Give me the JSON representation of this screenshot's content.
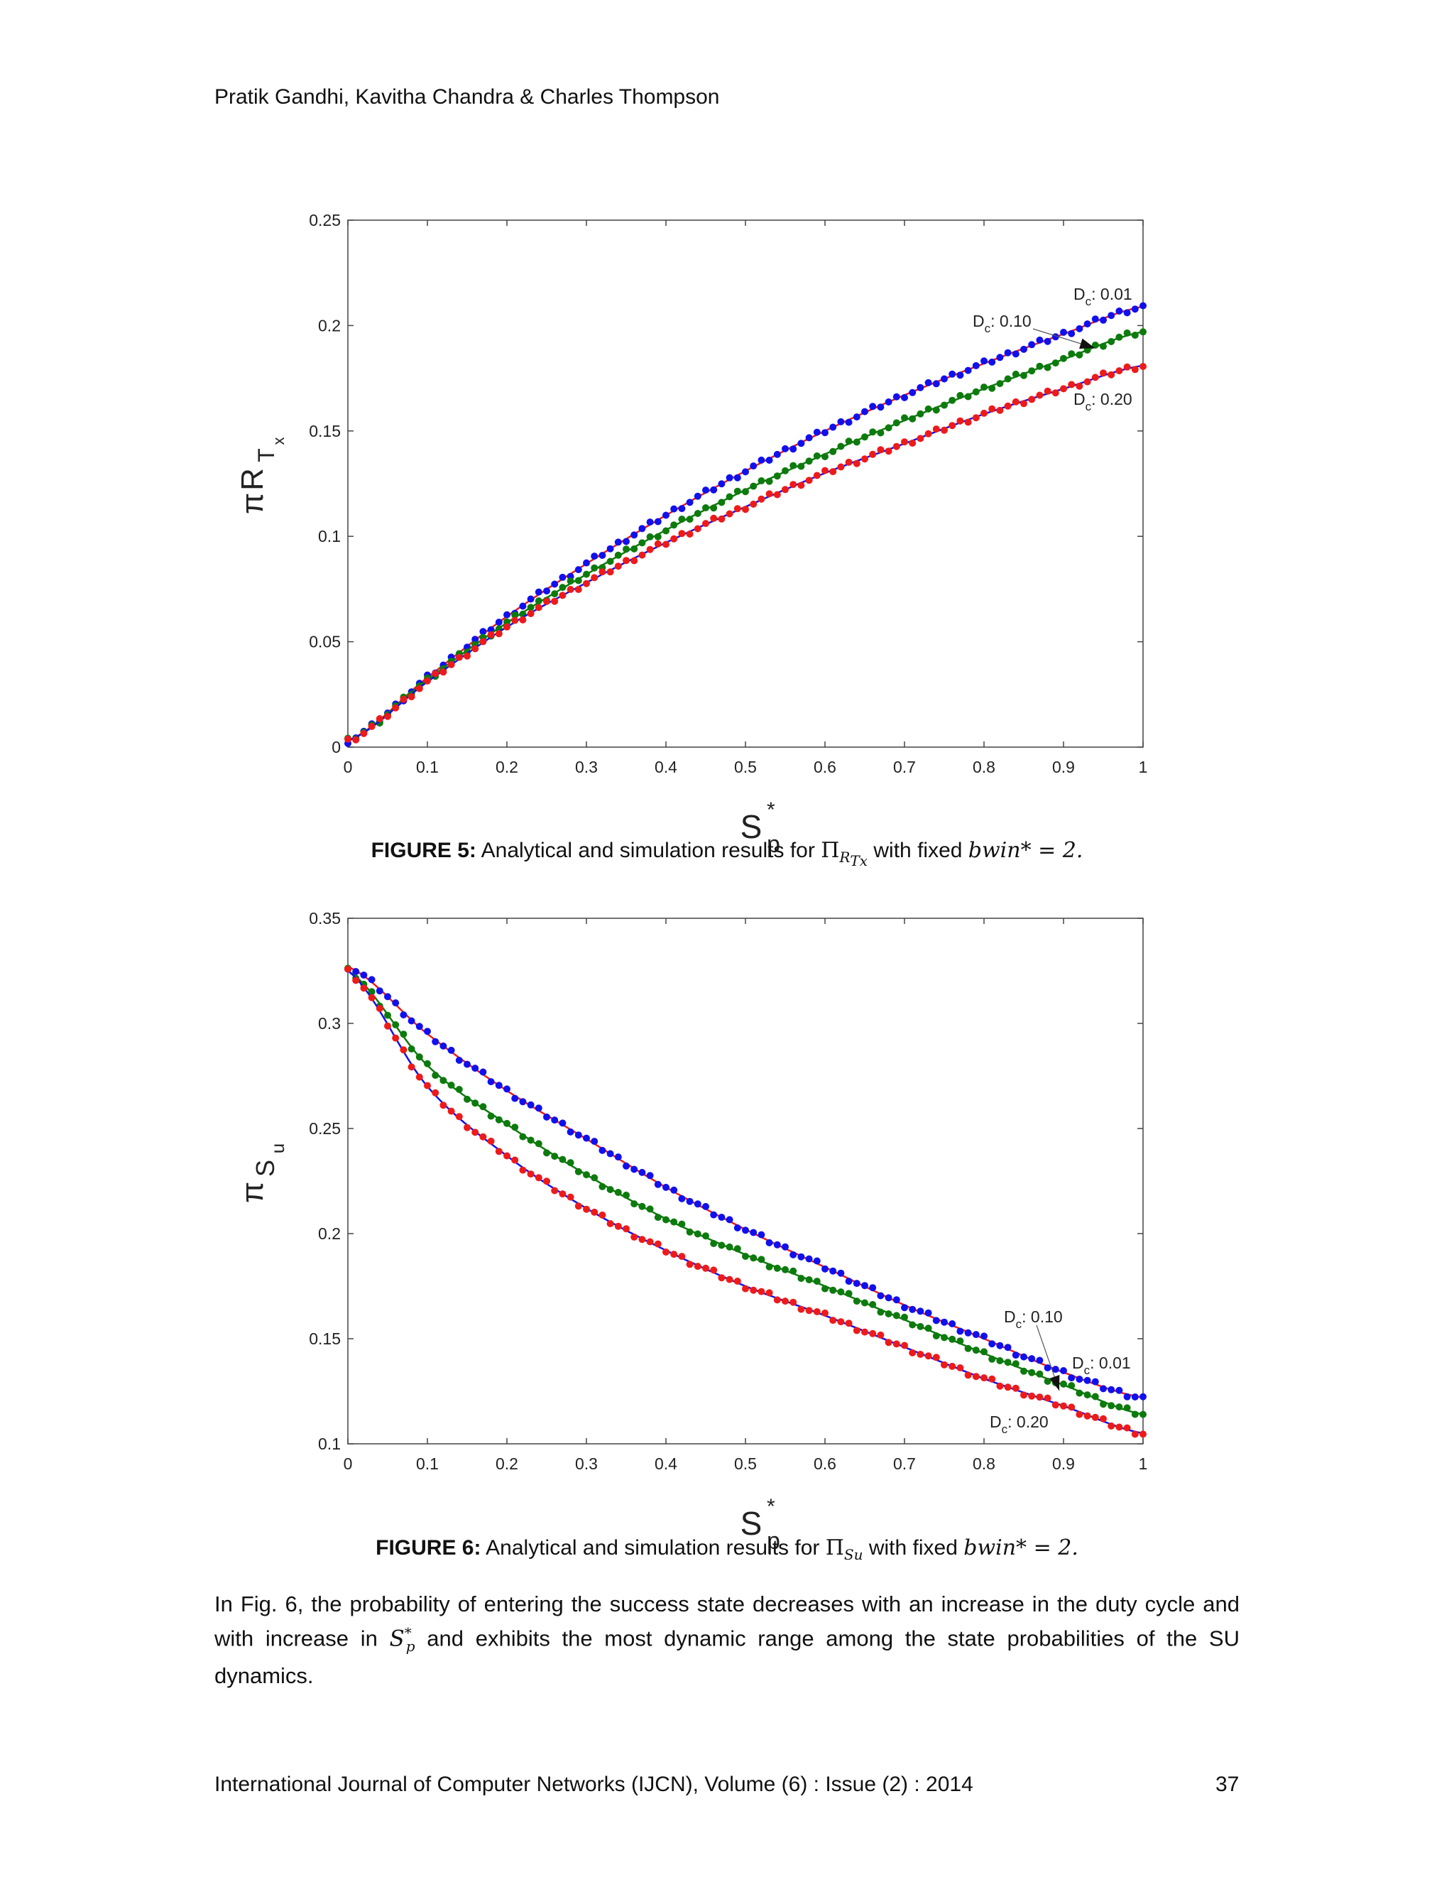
{
  "header": {
    "authors": "Pratik Gandhi, Kavitha Chandra & Charles Thompson"
  },
  "footer": {
    "journal": "International Journal of Computer Networks (IJCN), Volume (6) : Issue (2) : 2014",
    "page": "37"
  },
  "figure5": {
    "label": "FIGURE 5:",
    "text_a": "Analytical and simulation results for ",
    "symbol": "Π",
    "sub": "R",
    "subsub": "Tx",
    "text_b": " with fixed ",
    "bwin": "bwin* = 2."
  },
  "figure6": {
    "label": "FIGURE 6:",
    "text_a": "Analytical and simulation results for ",
    "symbol": "Π",
    "sub": "Su",
    "text_b": " with fixed ",
    "bwin": "bwin* = 2."
  },
  "body": {
    "paragraph_a": "In Fig. 6, the probability of entering the success state decreases with an increase in the duty cycle and with increase in ",
    "sp": "S",
    "sp_sup": "*",
    "sp_sub": "p",
    "paragraph_b": " and exhibits the most dynamic range among the state probabilities of the SU dynamics."
  },
  "colors": {
    "blue": "#1010ee",
    "green": "#0d7a0d",
    "red": "#ee1a1a"
  },
  "chart_data": [
    {
      "type": "line",
      "title": "",
      "xlabel": "S*p",
      "ylabel": "πRTx",
      "xlim": [
        0,
        1
      ],
      "ylim": [
        0,
        0.25
      ],
      "xticks": [
        "0",
        "0.1",
        "0.2",
        "0.3",
        "0.4",
        "0.5",
        "0.6",
        "0.7",
        "0.8",
        "0.9",
        "1"
      ],
      "yticks": [
        "0",
        "0.05",
        "0.1",
        "0.15",
        "0.2",
        "0.25"
      ],
      "grid": false,
      "x": [
        0,
        0.1,
        0.2,
        0.3,
        0.4,
        0.5,
        0.6,
        0.7,
        0.8,
        0.9,
        1.0
      ],
      "series": [
        {
          "name": "Dc: 0.01",
          "color": "blue",
          "values": [
            0.003,
            0.033,
            0.062,
            0.087,
            0.11,
            0.131,
            0.15,
            0.167,
            0.182,
            0.196,
            0.209
          ]
        },
        {
          "name": "Dc: 0.10",
          "color": "green",
          "values": [
            0.003,
            0.032,
            0.059,
            0.082,
            0.103,
            0.122,
            0.139,
            0.155,
            0.17,
            0.184,
            0.197
          ]
        },
        {
          "name": "Dc: 0.20",
          "color": "red",
          "values": [
            0.003,
            0.031,
            0.057,
            0.078,
            0.097,
            0.114,
            0.13,
            0.144,
            0.158,
            0.17,
            0.181
          ]
        }
      ],
      "annotations": [
        {
          "text": "Dc: 0.01",
          "sub": "c",
          "value": ": 0.01"
        },
        {
          "text": "Dc: 0.10",
          "sub": "c",
          "value": ": 0.10"
        },
        {
          "text": "Dc: 0.20",
          "sub": "c",
          "value": ": 0.20"
        }
      ]
    },
    {
      "type": "line",
      "title": "",
      "xlabel": "S*p",
      "ylabel": "πSu",
      "xlim": [
        0,
        1
      ],
      "ylim": [
        0.1,
        0.35
      ],
      "xticks": [
        "0",
        "0.1",
        "0.2",
        "0.3",
        "0.4",
        "0.5",
        "0.6",
        "0.7",
        "0.8",
        "0.9",
        "1"
      ],
      "yticks": [
        "0.1",
        "0.15",
        "0.2",
        "0.25",
        "0.3",
        "0.35"
      ],
      "grid": false,
      "x": [
        0,
        0.1,
        0.2,
        0.3,
        0.4,
        0.5,
        0.6,
        0.7,
        0.8,
        0.9,
        1.0
      ],
      "series": [
        {
          "name": "Dc: 0.01",
          "color": "blue",
          "values": [
            0.327,
            0.295,
            0.268,
            0.245,
            0.222,
            0.202,
            0.184,
            0.166,
            0.15,
            0.134,
            0.122
          ]
        },
        {
          "name": "Dc: 0.10",
          "color": "green",
          "values": [
            0.325,
            0.28,
            0.252,
            0.228,
            0.207,
            0.19,
            0.175,
            0.159,
            0.143,
            0.128,
            0.114
          ]
        },
        {
          "name": "Dc: 0.20",
          "color": "red",
          "values": [
            0.325,
            0.27,
            0.237,
            0.212,
            0.192,
            0.175,
            0.161,
            0.146,
            0.131,
            0.118,
            0.105
          ]
        }
      ],
      "annotations": [
        {
          "text": "Dc: 0.10",
          "sub": "c",
          "value": ": 0.10"
        },
        {
          "text": "Dc: 0.01",
          "sub": "c",
          "value": ": 0.01"
        },
        {
          "text": "Dc: 0.20",
          "sub": "c",
          "value": ": 0.20"
        }
      ]
    }
  ]
}
